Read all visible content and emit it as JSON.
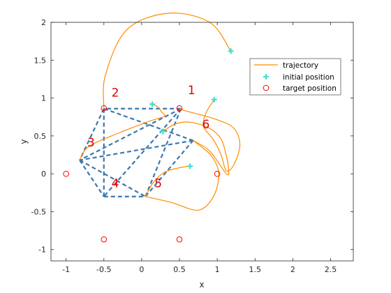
{
  "chart_data": {
    "type": "line",
    "xlabel": "x",
    "ylabel": "y",
    "xlim": [
      -1.2,
      2.8
    ],
    "ylim": [
      -1.15,
      2.0
    ],
    "xticks": [
      -1,
      -0.5,
      0,
      0.5,
      1,
      1.5,
      2,
      2.5
    ],
    "xtick_labels": [
      "-1",
      "-0.5",
      "0",
      "0.5",
      "1",
      "1.5",
      "2",
      "2.5"
    ],
    "yticks": [
      -1,
      -0.5,
      0,
      0.5,
      1,
      1.5,
      2
    ],
    "ytick_labels": [
      "-1",
      "-0.5",
      "0",
      "0.5",
      "1",
      "1.5",
      "2"
    ],
    "grid": false,
    "legend": {
      "placement": "top-right",
      "entries": [
        {
          "label": "trajectory",
          "marker": "line",
          "color": "#ff8c00"
        },
        {
          "label": "initial position",
          "marker": "plus",
          "color": "#40e0d0"
        },
        {
          "label": "target position",
          "marker": "circle",
          "color": "#ff0000"
        }
      ]
    },
    "colors": {
      "trajectory": "#ff8c00",
      "initial": "#40e0d0",
      "target": "#ff0000",
      "formation": "#3a78b0",
      "labels": "#e00000"
    },
    "target_positions": [
      {
        "x": 0.5,
        "y": 0.866
      },
      {
        "x": -0.5,
        "y": 0.866
      },
      {
        "x": -1,
        "y": 0
      },
      {
        "x": -0.5,
        "y": -0.866
      },
      {
        "x": 0.5,
        "y": -0.866
      },
      {
        "x": 1,
        "y": 0
      }
    ],
    "initial_positions": [
      {
        "x": 1.18,
        "y": 1.62
      },
      {
        "x": 0.14,
        "y": 0.92
      },
      {
        "x": 0.96,
        "y": 0.98
      },
      {
        "x": 0.28,
        "y": 0.56
      },
      {
        "x": 0.64,
        "y": 0.1
      }
    ],
    "final_positions": [
      {
        "x": 0.52,
        "y": 0.86
      },
      {
        "x": -0.5,
        "y": 0.86
      },
      {
        "x": -0.82,
        "y": 0.18
      },
      {
        "x": -0.5,
        "y": -0.3
      },
      {
        "x": 0.05,
        "y": -0.3
      },
      {
        "x": 0.68,
        "y": 0.44
      }
    ],
    "formation_edges": [
      [
        0,
        1
      ],
      [
        1,
        2
      ],
      [
        2,
        3
      ],
      [
        3,
        4
      ],
      [
        4,
        5
      ],
      [
        5,
        2
      ],
      [
        0,
        2
      ],
      [
        1,
        3
      ],
      [
        0,
        4
      ],
      [
        2,
        4
      ],
      [
        1,
        5
      ],
      [
        0,
        3
      ]
    ],
    "node_labels": [
      {
        "text": "1",
        "x": 0.66,
        "y": 1.05
      },
      {
        "text": "2",
        "x": -0.35,
        "y": 1.02
      },
      {
        "text": "3",
        "x": -0.67,
        "y": 0.36
      },
      {
        "text": "4",
        "x": -0.35,
        "y": -0.18
      },
      {
        "text": "5",
        "x": 0.22,
        "y": -0.18
      },
      {
        "text": "6",
        "x": 0.85,
        "y": 0.6
      }
    ],
    "series": [
      {
        "values": [
          [
            1.18,
            1.62
          ],
          [
            0.9,
            2.0
          ],
          [
            0.35,
            2.12
          ],
          [
            -0.2,
            1.9
          ],
          [
            -0.48,
            1.3
          ],
          [
            -0.5,
            0.86
          ]
        ]
      },
      {
        "values": [
          [
            0.14,
            0.92
          ],
          [
            0.22,
            0.88
          ],
          [
            0.26,
            0.82
          ],
          [
            0.3,
            0.76
          ],
          [
            0.12,
            0.7
          ],
          [
            -0.3,
            0.54
          ],
          [
            -0.7,
            0.36
          ],
          [
            -0.82,
            0.18
          ]
        ]
      },
      {
        "values": [
          [
            0.96,
            0.98
          ],
          [
            0.85,
            0.8
          ],
          [
            0.82,
            0.62
          ],
          [
            0.95,
            0.45
          ],
          [
            1.05,
            0.25
          ],
          [
            1.12,
            0.04
          ],
          [
            1.22,
            0.12
          ],
          [
            1.3,
            0.38
          ],
          [
            1.22,
            0.6
          ],
          [
            0.98,
            0.72
          ],
          [
            0.55,
            0.84
          ],
          [
            0.52,
            0.86
          ]
        ]
      },
      {
        "values": [
          [
            0.28,
            0.56
          ],
          [
            0.45,
            0.66
          ],
          [
            0.65,
            0.68
          ],
          [
            0.9,
            0.6
          ],
          [
            1.05,
            0.46
          ],
          [
            1.12,
            0.24
          ],
          [
            1.15,
            0.05
          ],
          [
            1.12,
            0.0
          ],
          [
            0.9,
            0.3
          ],
          [
            0.68,
            0.44
          ]
        ]
      },
      {
        "values": [
          [
            0.64,
            0.1
          ],
          [
            0.5,
            0.08
          ],
          [
            0.3,
            0.02
          ],
          [
            0.15,
            -0.12
          ],
          [
            0.05,
            -0.3
          ]
        ]
      },
      {
        "values": [
          [
            0.05,
            -0.3
          ],
          [
            0.4,
            -0.38
          ],
          [
            0.75,
            -0.48
          ],
          [
            0.95,
            -0.3
          ],
          [
            1.02,
            0.0
          ],
          [
            0.92,
            0.24
          ],
          [
            0.68,
            0.44
          ]
        ]
      }
    ]
  }
}
